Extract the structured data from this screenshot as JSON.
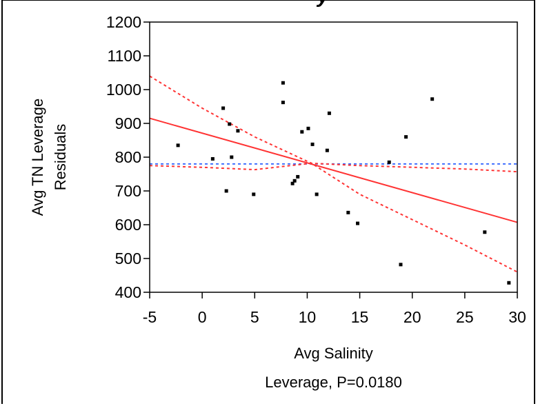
{
  "chart_data": {
    "type": "scatter",
    "title_fragment": "y",
    "xlabel": "Avg Salinity",
    "caption": "Leverage, P=0.0180",
    "ylabel_lines": [
      "Avg TN Leverage",
      "Residuals"
    ],
    "xlim": [
      -5,
      30
    ],
    "ylim": [
      400,
      1200
    ],
    "x_ticks": [
      -5,
      0,
      5,
      10,
      15,
      20,
      25,
      30
    ],
    "y_ticks": [
      400,
      500,
      600,
      700,
      800,
      900,
      1000,
      1100,
      1200
    ],
    "points": [
      {
        "x": -2.3,
        "y": 835
      },
      {
        "x": 1.0,
        "y": 795
      },
      {
        "x": 2.0,
        "y": 945
      },
      {
        "x": 2.3,
        "y": 700
      },
      {
        "x": 2.6,
        "y": 898
      },
      {
        "x": 2.8,
        "y": 800
      },
      {
        "x": 3.4,
        "y": 878
      },
      {
        "x": 4.9,
        "y": 690
      },
      {
        "x": 7.7,
        "y": 1020
      },
      {
        "x": 7.7,
        "y": 962
      },
      {
        "x": 8.6,
        "y": 722
      },
      {
        "x": 8.8,
        "y": 730
      },
      {
        "x": 9.1,
        "y": 742
      },
      {
        "x": 9.5,
        "y": 875
      },
      {
        "x": 10.1,
        "y": 885
      },
      {
        "x": 10.5,
        "y": 838
      },
      {
        "x": 10.9,
        "y": 690
      },
      {
        "x": 11.9,
        "y": 820
      },
      {
        "x": 12.1,
        "y": 930
      },
      {
        "x": 13.9,
        "y": 636
      },
      {
        "x": 14.8,
        "y": 604
      },
      {
        "x": 17.8,
        "y": 785
      },
      {
        "x": 18.9,
        "y": 482
      },
      {
        "x": 19.4,
        "y": 860
      },
      {
        "x": 21.9,
        "y": 972
      },
      {
        "x": 26.9,
        "y": 578
      },
      {
        "x": 29.2,
        "y": 428
      }
    ],
    "fit_line": {
      "color": "#ff3333",
      "x": [
        -5,
        30
      ],
      "y": [
        915,
        607
      ]
    },
    "confidence_upper": {
      "color": "#ff3333",
      "x": [
        -5,
        0,
        5,
        10.4,
        15,
        20,
        25,
        30
      ],
      "y": [
        1040,
        945,
        860,
        782,
        775,
        770,
        765,
        757
      ]
    },
    "confidence_lower": {
      "color": "#ff3333",
      "x": [
        -5,
        0,
        5,
        10.4,
        15,
        20,
        25,
        30
      ],
      "y": [
        775,
        770,
        763,
        782,
        690,
        615,
        540,
        460
      ]
    },
    "mean_line": {
      "color": "#3366ff",
      "y": 780
    }
  }
}
